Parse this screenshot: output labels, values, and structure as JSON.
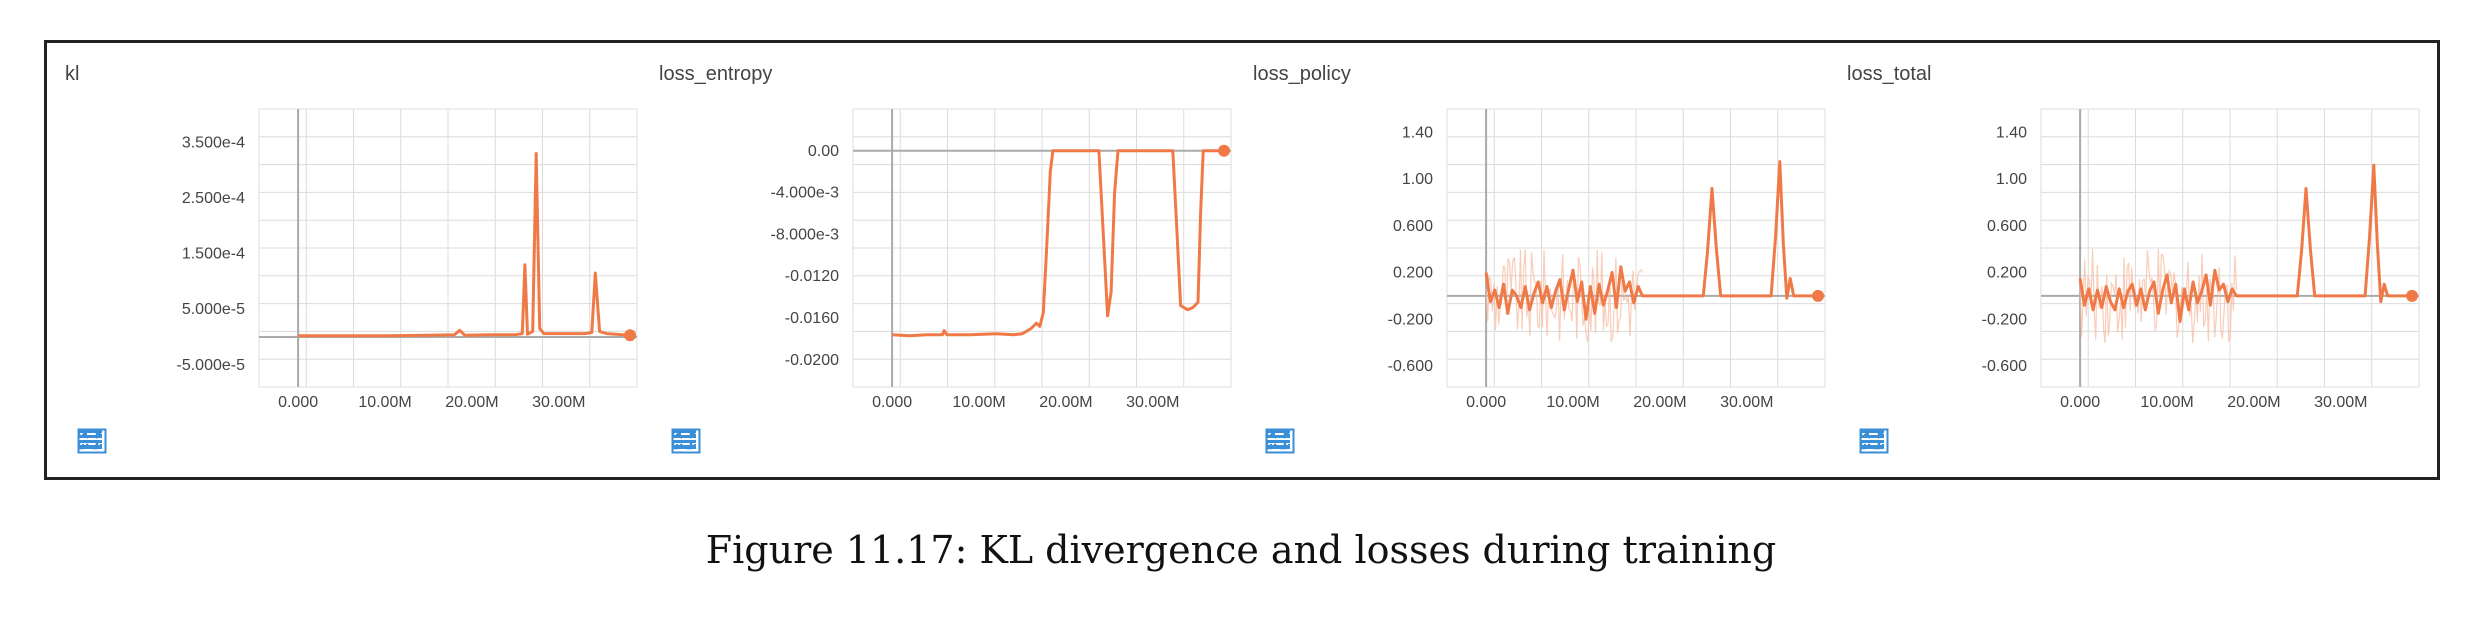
{
  "caption": "Figure 11.17: KL divergence and losses during training",
  "colors": {
    "line": "#f07a47",
    "line_faint": "#f7b89b",
    "grid": "#dcdcdc",
    "axis": "#aaaaaa",
    "icon": "#3b8fd6"
  },
  "toolbar_icons": [
    "expand-icon",
    "data-table-icon",
    "fit-domain-icon"
  ],
  "chart_data": [
    {
      "type": "line",
      "title": "kl",
      "xlabel": "",
      "ylabel": "",
      "xlim": [
        -4.5,
        39
      ],
      "ylim": [
        -9e-05,
        0.00041
      ],
      "grid": true,
      "x_ticks": [
        0,
        10,
        20,
        30
      ],
      "x_tick_labels": [
        "0.000",
        "10.00M",
        "20.00M",
        "30.00M"
      ],
      "y_ticks": [
        -5e-05,
        5e-05,
        0.00015,
        0.00025,
        0.00035
      ],
      "y_tick_labels": [
        "-5.000e-5",
        "5.000e-5",
        "1.500e-4",
        "2.500e-4",
        "3.500e-4"
      ],
      "zero_line": 0,
      "series": [
        {
          "noise": false,
          "values": [
            [
              0,
              2e-06
            ],
            [
              5,
              2e-06
            ],
            [
              10,
              2e-06
            ],
            [
              15,
              3e-06
            ],
            [
              18,
              4e-06
            ],
            [
              18.6,
              1.2e-05
            ],
            [
              19.2,
              3e-06
            ],
            [
              22,
              4e-06
            ],
            [
              25,
              4e-06
            ],
            [
              25.8,
              6e-06
            ],
            [
              26.1,
              0.00013
            ],
            [
              26.4,
              5e-06
            ],
            [
              27,
              1e-05
            ],
            [
              27.4,
              0.00033
            ],
            [
              27.8,
              1.5e-05
            ],
            [
              28.3,
              6e-06
            ],
            [
              33,
              6e-06
            ],
            [
              33.8,
              8e-06
            ],
            [
              34.2,
              0.000115
            ],
            [
              34.7,
              1e-05
            ],
            [
              35.5,
              6e-06
            ],
            [
              38.2,
              3e-06
            ]
          ]
        }
      ]
    },
    {
      "type": "line",
      "title": "loss_entropy",
      "xlabel": "",
      "ylabel": "",
      "xlim": [
        -4.5,
        39
      ],
      "ylim": [
        -0.0226,
        0.004
      ],
      "grid": true,
      "x_ticks": [
        0,
        10,
        20,
        30
      ],
      "x_tick_labels": [
        "0.000",
        "10.00M",
        "20.00M",
        "30.00M"
      ],
      "y_ticks": [
        0,
        -0.004,
        -0.008,
        -0.012,
        -0.016,
        -0.02
      ],
      "y_tick_labels": [
        "0.00",
        "-4.000e-3",
        "-8.000e-3",
        "-0.0120",
        "-0.0160",
        "-0.0200"
      ],
      "zero_line": 0,
      "series": [
        {
          "noise": false,
          "values": [
            [
              0,
              -0.0176
            ],
            [
              2,
              -0.0177
            ],
            [
              4,
              -0.0176
            ],
            [
              5.8,
              -0.0176
            ],
            [
              6,
              -0.0172
            ],
            [
              6.3,
              -0.0176
            ],
            [
              9,
              -0.0176
            ],
            [
              12,
              -0.0175
            ],
            [
              14,
              -0.0176
            ],
            [
              15,
              -0.0175
            ],
            [
              16,
              -0.017
            ],
            [
              16.6,
              -0.0165
            ],
            [
              17,
              -0.0168
            ],
            [
              17.4,
              -0.0155
            ],
            [
              17.8,
              -0.009
            ],
            [
              18.2,
              -0.002
            ],
            [
              18.5,
              0
            ],
            [
              22,
              0
            ],
            [
              23.8,
              0
            ],
            [
              24.3,
              -0.008
            ],
            [
              24.8,
              -0.0158
            ],
            [
              25.2,
              -0.0135
            ],
            [
              25.6,
              -0.004
            ],
            [
              26,
              0
            ],
            [
              29,
              0
            ],
            [
              32.3,
              0
            ],
            [
              32.8,
              -0.008
            ],
            [
              33.2,
              -0.0148
            ],
            [
              34,
              -0.0152
            ],
            [
              34.6,
              -0.015
            ],
            [
              35.2,
              -0.0145
            ],
            [
              35.5,
              -0.006
            ],
            [
              35.8,
              0
            ],
            [
              38.2,
              0
            ]
          ]
        }
      ]
    },
    {
      "type": "line",
      "title": "loss_policy",
      "xlabel": "",
      "ylabel": "",
      "xlim": [
        -4.5,
        39
      ],
      "ylim": [
        -0.78,
        1.6
      ],
      "grid": true,
      "x_ticks": [
        0,
        10,
        20,
        30
      ],
      "x_tick_labels": [
        "0.000",
        "10.00M",
        "20.00M",
        "30.00M"
      ],
      "y_ticks": [
        1.4,
        1.0,
        0.6,
        0.2,
        -0.2,
        -0.6
      ],
      "y_tick_labels": [
        "1.40",
        "1.00",
        "0.600",
        "0.200",
        "-0.200",
        "-0.600"
      ],
      "zero_line": 0,
      "series": [
        {
          "noise": true,
          "noise_range": [
            0,
            18
          ],
          "values": [
            [
              0,
              0.2
            ],
            [
              0.5,
              -0.05
            ],
            [
              1,
              0.05
            ],
            [
              1.5,
              -0.1
            ],
            [
              2,
              0.1
            ],
            [
              2.5,
              -0.15
            ],
            [
              3,
              0.05
            ],
            [
              3.5,
              0
            ],
            [
              4,
              -0.1
            ],
            [
              4.5,
              0.08
            ],
            [
              5,
              -0.12
            ],
            [
              5.5,
              0.02
            ],
            [
              6,
              0.12
            ],
            [
              6.5,
              -0.06
            ],
            [
              7,
              0.08
            ],
            [
              7.5,
              -0.1
            ],
            [
              8,
              0.04
            ],
            [
              8.5,
              0.14
            ],
            [
              9,
              -0.12
            ],
            [
              9.5,
              0.06
            ],
            [
              10,
              0.22
            ],
            [
              10.5,
              -0.05
            ],
            [
              11,
              0.12
            ],
            [
              11.5,
              -0.2
            ],
            [
              12,
              0.08
            ],
            [
              12.5,
              -0.15
            ],
            [
              13,
              0.1
            ],
            [
              13.5,
              -0.08
            ],
            [
              14,
              0.05
            ],
            [
              14.5,
              0.2
            ],
            [
              15,
              -0.1
            ],
            [
              15.5,
              0.25
            ],
            [
              16,
              0.04
            ],
            [
              16.5,
              0.12
            ],
            [
              17,
              -0.06
            ],
            [
              17.5,
              0.08
            ],
            [
              18,
              0
            ],
            [
              25,
              0
            ],
            [
              25.5,
              0.4
            ],
            [
              26,
              0.92
            ],
            [
              26.5,
              0.4
            ],
            [
              27,
              0
            ],
            [
              32.8,
              0
            ],
            [
              33.3,
              0.5
            ],
            [
              33.8,
              1.15
            ],
            [
              34.2,
              0.45
            ],
            [
              34.6,
              -0.02
            ],
            [
              35,
              0.15
            ],
            [
              35.4,
              0
            ],
            [
              38.2,
              0
            ]
          ]
        }
      ]
    },
    {
      "type": "line",
      "title": "loss_total",
      "xlabel": "",
      "ylabel": "",
      "xlim": [
        -4.5,
        39
      ],
      "ylim": [
        -0.78,
        1.6
      ],
      "grid": true,
      "x_ticks": [
        0,
        10,
        20,
        30
      ],
      "x_tick_labels": [
        "0.000",
        "10.00M",
        "20.00M",
        "30.00M"
      ],
      "y_ticks": [
        1.4,
        1.0,
        0.6,
        0.2,
        -0.2,
        -0.6
      ],
      "y_tick_labels": [
        "1.40",
        "1.00",
        "0.600",
        "0.200",
        "-0.200",
        "-0.600"
      ],
      "zero_line": 0,
      "series": [
        {
          "noise": true,
          "noise_range": [
            0,
            18
          ],
          "values": [
            [
              0,
              0.15
            ],
            [
              0.5,
              -0.08
            ],
            [
              1,
              0.06
            ],
            [
              1.5,
              -0.12
            ],
            [
              2,
              0.05
            ],
            [
              2.5,
              -0.1
            ],
            [
              3,
              0.08
            ],
            [
              3.5,
              -0.05
            ],
            [
              4,
              -0.12
            ],
            [
              4.5,
              0.06
            ],
            [
              5,
              -0.1
            ],
            [
              5.5,
              0.04
            ],
            [
              6,
              0.1
            ],
            [
              6.5,
              -0.08
            ],
            [
              7,
              0.06
            ],
            [
              7.5,
              -0.12
            ],
            [
              8,
              0.04
            ],
            [
              8.5,
              0.12
            ],
            [
              9,
              -0.15
            ],
            [
              9.5,
              0.05
            ],
            [
              10,
              0.18
            ],
            [
              10.5,
              -0.06
            ],
            [
              11,
              0.1
            ],
            [
              11.5,
              -0.22
            ],
            [
              12,
              0.06
            ],
            [
              12.5,
              -0.12
            ],
            [
              13,
              0.12
            ],
            [
              13.5,
              -0.06
            ],
            [
              14,
              0.04
            ],
            [
              14.5,
              0.18
            ],
            [
              15,
              -0.08
            ],
            [
              15.5,
              0.22
            ],
            [
              16,
              0.05
            ],
            [
              16.5,
              0.1
            ],
            [
              17,
              -0.05
            ],
            [
              17.5,
              0.06
            ],
            [
              18,
              0
            ],
            [
              25,
              0
            ],
            [
              25.5,
              0.4
            ],
            [
              26,
              0.92
            ],
            [
              26.5,
              0.4
            ],
            [
              27,
              0
            ],
            [
              32.8,
              0
            ],
            [
              33.3,
              0.5
            ],
            [
              33.8,
              1.12
            ],
            [
              34.2,
              0.45
            ],
            [
              34.6,
              -0.05
            ],
            [
              35,
              0.1
            ],
            [
              35.4,
              0
            ],
            [
              38.2,
              0
            ]
          ]
        }
      ]
    }
  ]
}
